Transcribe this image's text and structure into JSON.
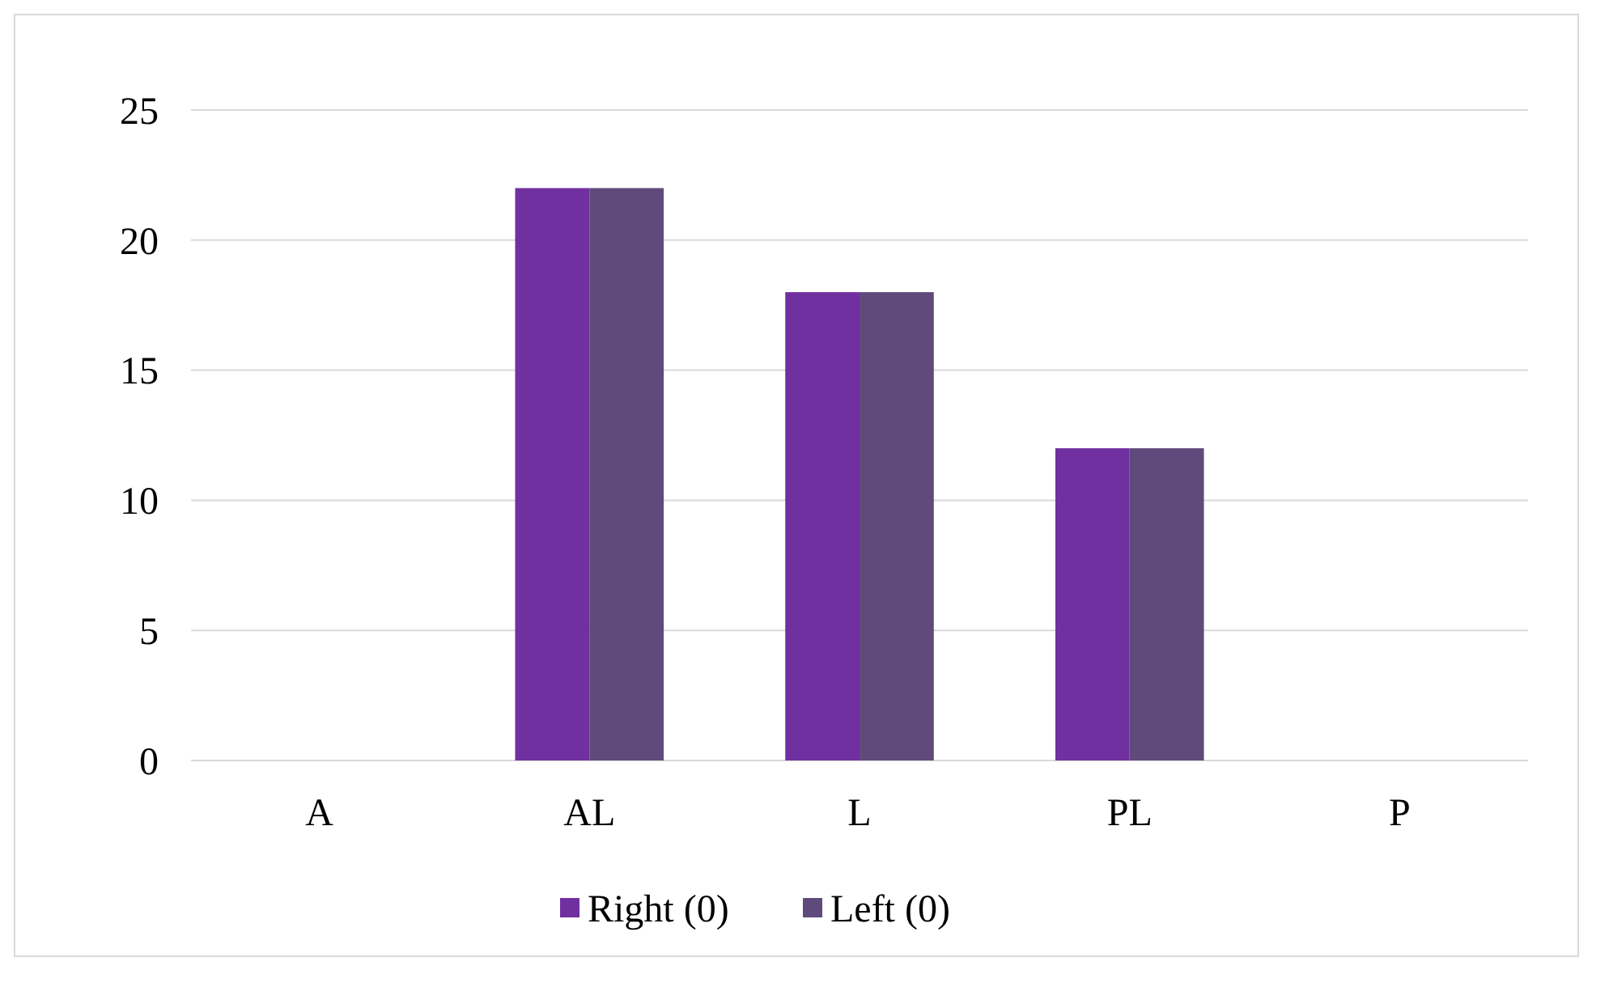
{
  "chart_data": {
    "type": "bar",
    "categories": [
      "A",
      "AL",
      "L",
      "PL",
      "P"
    ],
    "series": [
      {
        "name": "Right (0)",
        "color": "#7030a0",
        "values": [
          0,
          22,
          18,
          12,
          0
        ]
      },
      {
        "name": "Left (0)",
        "color": "#604a7b",
        "values": [
          0,
          22,
          18,
          12,
          0
        ]
      }
    ],
    "ylim": [
      0,
      25
    ],
    "yticks": [
      0,
      5,
      10,
      15,
      20,
      25
    ],
    "grid": "y",
    "legend": "bottom"
  }
}
